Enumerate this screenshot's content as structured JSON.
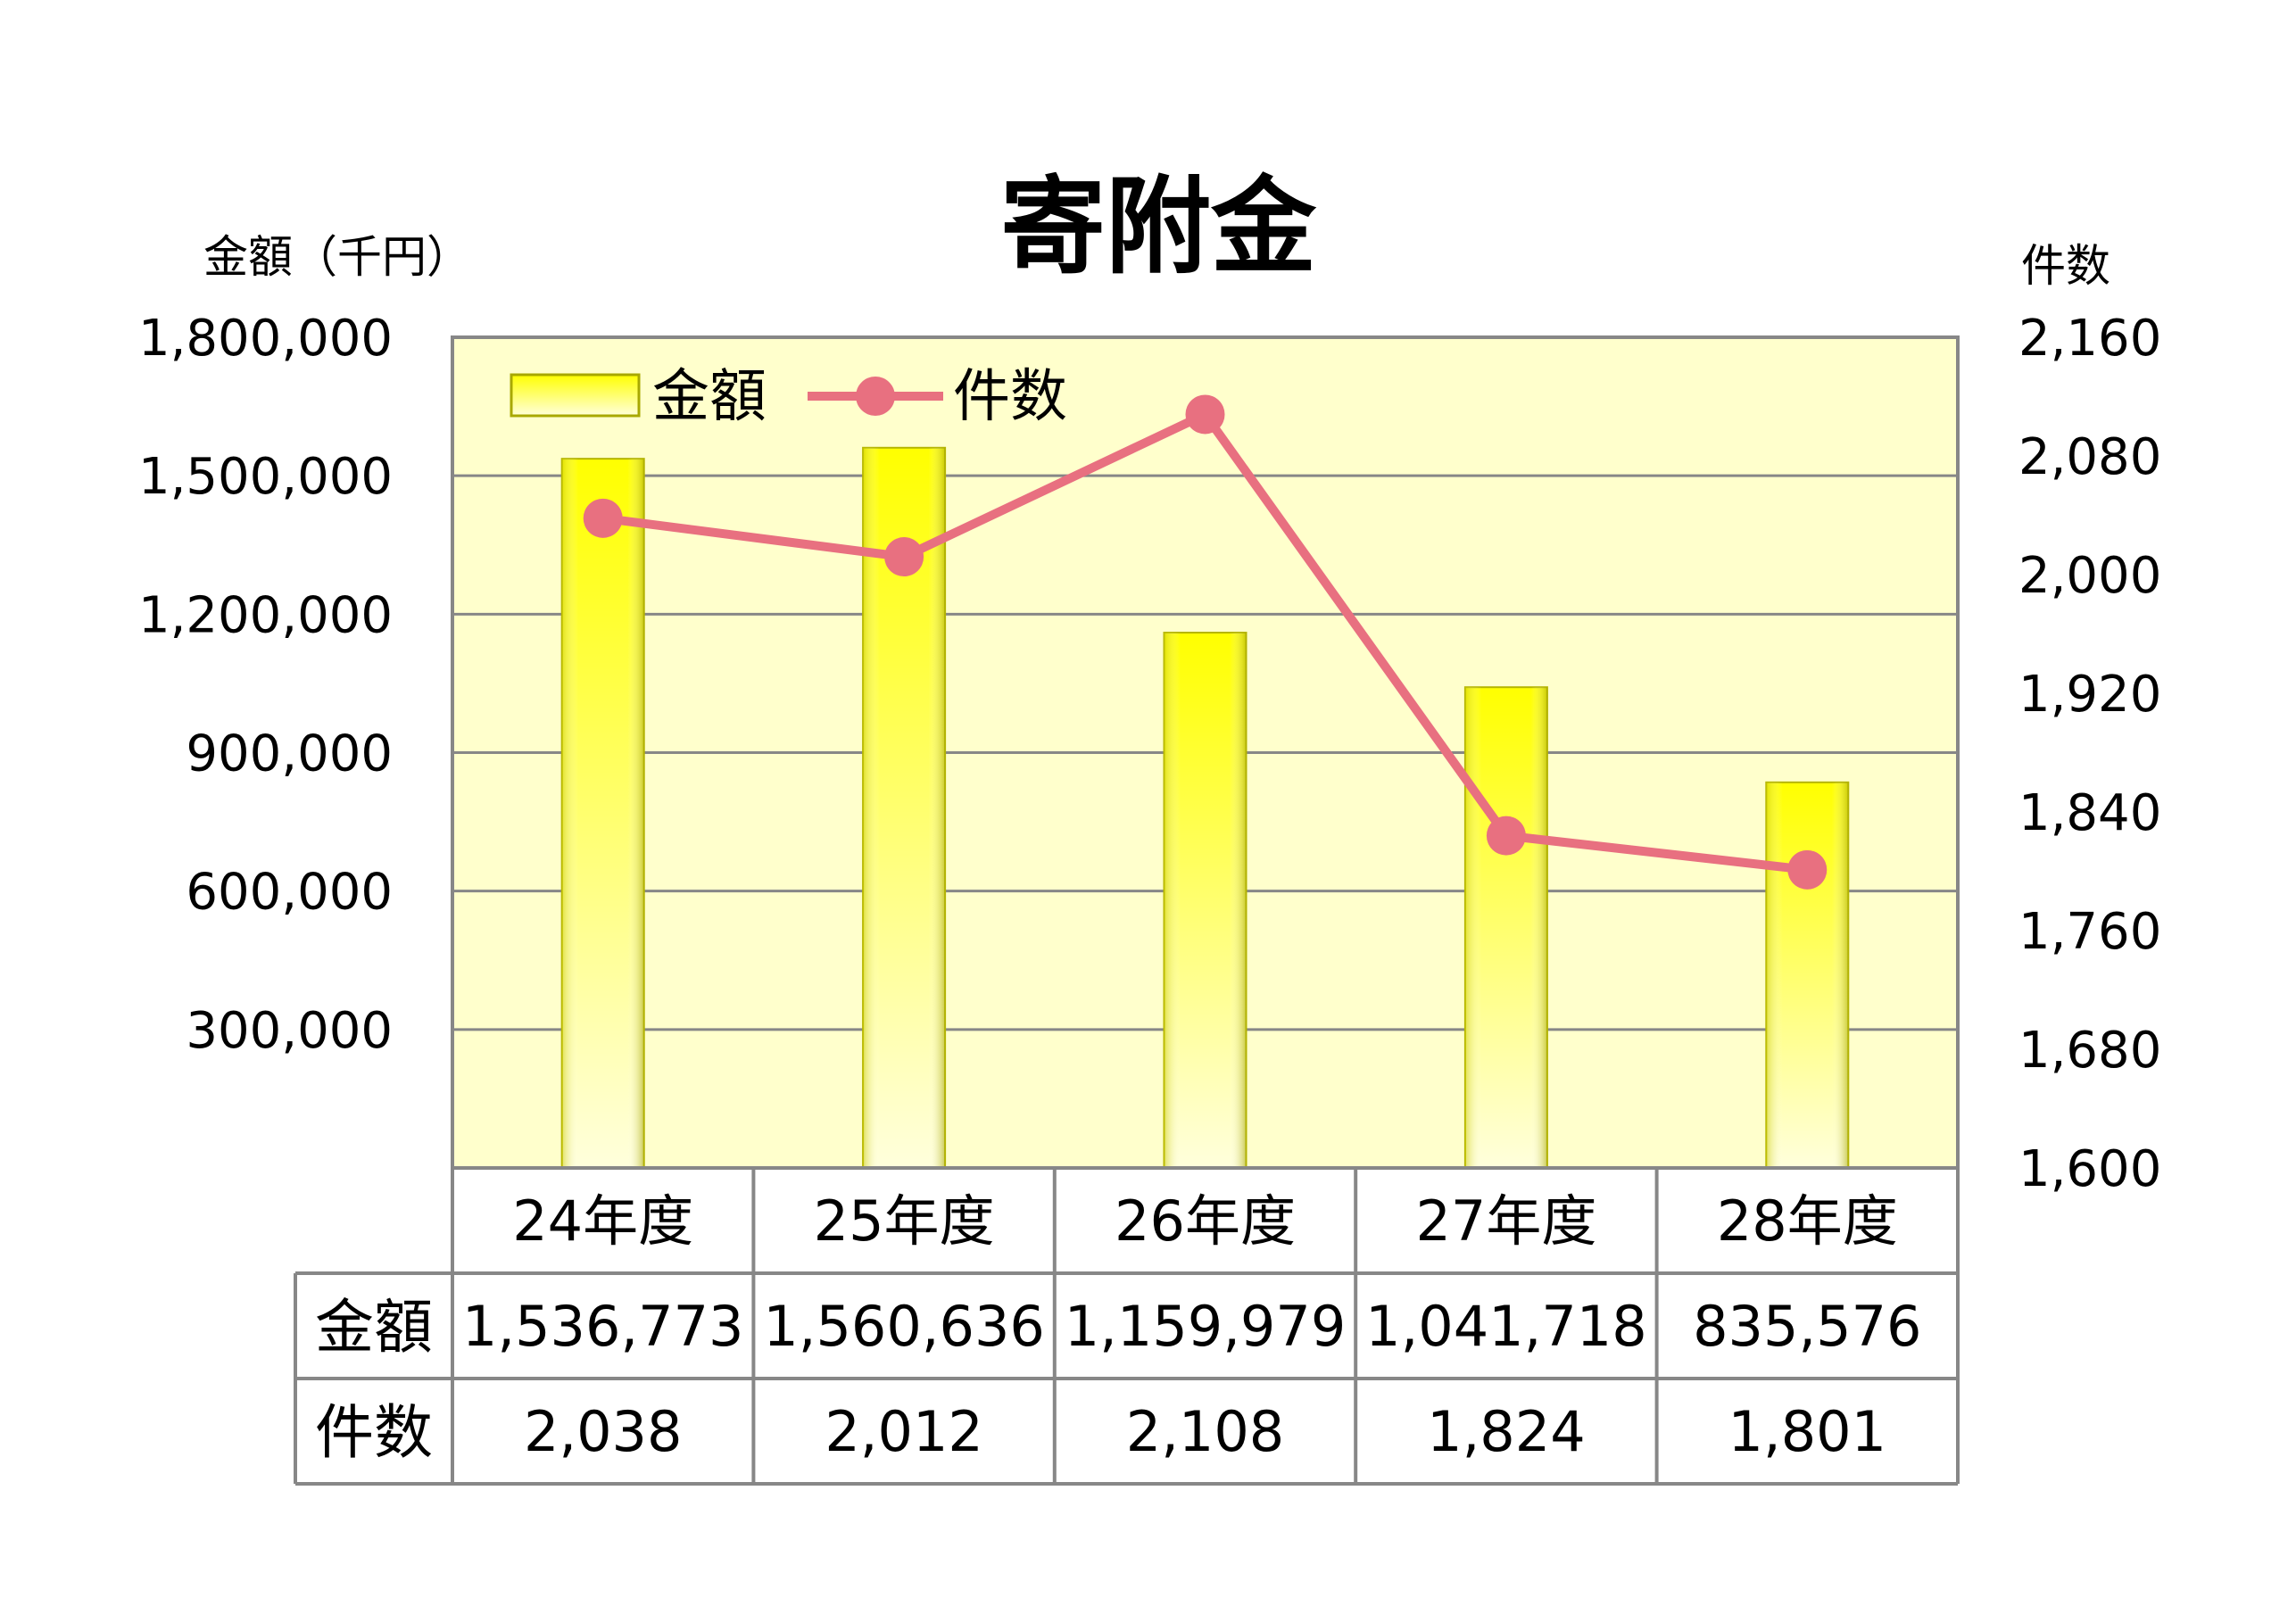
{
  "chart_data": {
    "type": "bar",
    "title": "寄附金",
    "categories": [
      "24年度",
      "25年度",
      "26年度",
      "27年度",
      "28年度"
    ],
    "series": [
      {
        "name": "金額",
        "kind": "bar",
        "axis": "left",
        "values": [
          1536773,
          1560636,
          1159979,
          1041718,
          835576
        ],
        "labels": [
          "1,536,773",
          "1,560,636",
          "1,159,979",
          "1,041,718",
          "835,576"
        ],
        "color": "#ffff00"
      },
      {
        "name": "件数",
        "kind": "line",
        "axis": "right",
        "values": [
          2038,
          2012,
          2108,
          1824,
          1801
        ],
        "labels": [
          "2,038",
          "2,012",
          "2,108",
          "1,824",
          "1,801"
        ],
        "color": "#e87080"
      }
    ],
    "y_left": {
      "label": "金額（千円）",
      "ylim": [
        0,
        1800000
      ],
      "ticks": [
        300000,
        600000,
        900000,
        1200000,
        1500000,
        1800000
      ],
      "tick_labels": [
        "300,000",
        "600,000",
        "900,000",
        "1,200,000",
        "1,500,000",
        "1,800,000"
      ]
    },
    "y_right": {
      "label": "件数",
      "ylim": [
        1600,
        2160
      ],
      "ticks": [
        1600,
        1680,
        1760,
        1840,
        1920,
        2000,
        2080,
        2160
      ],
      "tick_labels": [
        "1,600",
        "1,680",
        "1,760",
        "1,840",
        "1,920",
        "2,000",
        "2,080",
        "2,160"
      ]
    },
    "grid": true,
    "legend": "top-left",
    "data_table": true,
    "colors": {
      "plot_bg": "#ffffcc",
      "grid": "#878787",
      "bar": "#ffff00",
      "line": "#e87080"
    }
  }
}
